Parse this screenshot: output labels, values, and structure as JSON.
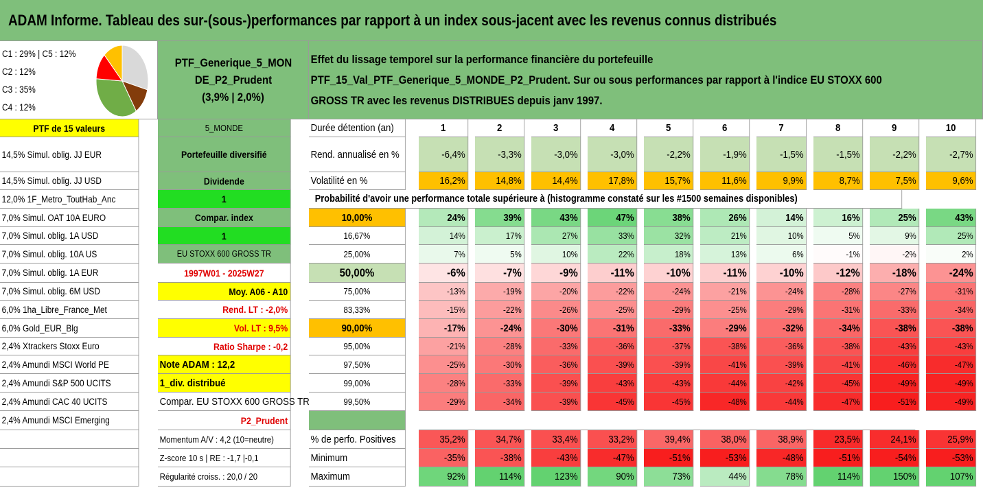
{
  "title": "ADAM Informe. Tableau des sur-(sous-)performances par rapport à un index sous-jacent avec les revenus connus distribués",
  "pie": {
    "lines": [
      "C1 : 29% | C5 : 12%",
      "C2 : 12%",
      "C3 : 35%",
      "C4 : 12%"
    ],
    "slices": [
      {
        "value": 29,
        "color": "#d9d9d9"
      },
      {
        "value": 12,
        "color": "#833c0b"
      },
      {
        "value": 35,
        "color": "#70ad47"
      },
      {
        "value": 12,
        "color": "#ff0000"
      },
      {
        "value": 12,
        "color": "#ffc000"
      }
    ]
  },
  "portfolio_name": "PTF_Generique_5_MONDE_P2_Prudent",
  "portfolio_stats": "(3,9% | 2,0%)",
  "description": "Effet du lissage temporel sur la performance financière du portefeuille PTF_15_Val_PTF_Generique_5_MONDE_P2_Prudent. Sur ou sous performances par rapport à l'indice EU STOXX 600 GROSS TR avec les revenus DISTRIBUES depuis janv 1997.",
  "holdings_header": "PTF de 15 valeurs",
  "holdings": [
    "14,5% Simul. oblig. JJ EUR",
    "14,5% Simul. oblig. JJ USD",
    "12,0% 1F_Metro_ToutHab_Anc",
    "7,0% Simul. OAT 10A EURO",
    "7,0% Simul. oblig. 1A USD",
    "7,0% Simul. oblig. 10A US",
    "7,0% Simul. oblig. 1A EUR",
    "7,0% Simul. oblig. 6M USD",
    "6,0% 1ha_Libre_France_Met",
    "6,0% Gold_EUR_Blg",
    "2,4% Xtrackers Stoxx Euro",
    "2,4% Amundi MSCI World PE",
    "2,4% Amundi S&P 500 UCITS",
    "2,4% Amundi CAC 40 UCITS",
    "2,4% Amundi MSCI Emerging"
  ],
  "params": [
    "5_MONDE",
    "Portefeuille diversifié",
    "Dividende",
    "1",
    "Compar. index",
    "1",
    "EU STOXX 600 GROSS TR",
    "1997W01 - 2025W27",
    "Moy. A06 - A10",
    "Rend. LT : -2,0%",
    "Vol. LT : 9,5%",
    "Ratio Sharpe : -0,2",
    "Note ADAM : 12,2",
    "1_div. distribué",
    "Compar. EU STOXX 600 GROSS TR",
    "P2_Prudent"
  ],
  "bottom_left": [
    "Momentum A/V : 4,2 (10=neutre)",
    "Z-score 10 s | RE : -1,7 |-0,1",
    "Régularité croiss. : 20,0 / 20"
  ],
  "duration_label": "Durée détention (an)",
  "years": [
    "1",
    "2",
    "3",
    "4",
    "5",
    "6",
    "7",
    "8",
    "9",
    "10"
  ],
  "rend_label": "Rend. annualisé en %",
  "rend": [
    "-6,4%",
    "-3,3%",
    "-3,0%",
    "-3,0%",
    "-2,2%",
    "-1,9%",
    "-1,5%",
    "-1,5%",
    "-2,2%",
    "-2,7%"
  ],
  "vol_label": "Volatilité en %",
  "vol": [
    "16,2%",
    "14,8%",
    "14,4%",
    "17,8%",
    "15,7%",
    "11,6%",
    "9,9%",
    "8,7%",
    "7,5%",
    "9,6%"
  ],
  "prob_header": "Probabilité d'avoir une performance totale supérieure à (histogramme constaté sur les #1500 semaines disponibles)",
  "prob_rows": [
    {
      "p": "10,00%",
      "v": [
        "24%",
        "39%",
        "43%",
        "47%",
        "38%",
        "26%",
        "14%",
        "16%",
        "25%",
        "43%"
      ]
    },
    {
      "p": "16,67%",
      "v": [
        "14%",
        "17%",
        "27%",
        "33%",
        "32%",
        "21%",
        "10%",
        "5%",
        "9%",
        "25%"
      ]
    },
    {
      "p": "25,00%",
      "v": [
        "7%",
        "5%",
        "10%",
        "22%",
        "18%",
        "13%",
        "6%",
        "-1%",
        "-2%",
        "2%"
      ]
    },
    {
      "p": "50,00%",
      "v": [
        "-6%",
        "-7%",
        "-9%",
        "-11%",
        "-10%",
        "-11%",
        "-10%",
        "-12%",
        "-18%",
        "-24%"
      ]
    },
    {
      "p": "75,00%",
      "v": [
        "-13%",
        "-19%",
        "-20%",
        "-22%",
        "-24%",
        "-21%",
        "-24%",
        "-28%",
        "-27%",
        "-31%"
      ]
    },
    {
      "p": "83,33%",
      "v": [
        "-15%",
        "-22%",
        "-26%",
        "-25%",
        "-29%",
        "-25%",
        "-29%",
        "-31%",
        "-33%",
        "-34%"
      ]
    },
    {
      "p": "90,00%",
      "v": [
        "-17%",
        "-24%",
        "-30%",
        "-31%",
        "-33%",
        "-29%",
        "-32%",
        "-34%",
        "-38%",
        "-38%"
      ]
    },
    {
      "p": "95,00%",
      "v": [
        "-21%",
        "-28%",
        "-33%",
        "-36%",
        "-37%",
        "-38%",
        "-36%",
        "-38%",
        "-43%",
        "-43%"
      ]
    },
    {
      "p": "97,50%",
      "v": [
        "-25%",
        "-30%",
        "-36%",
        "-39%",
        "-39%",
        "-41%",
        "-39%",
        "-41%",
        "-46%",
        "-47%"
      ]
    },
    {
      "p": "99,00%",
      "v": [
        "-28%",
        "-33%",
        "-39%",
        "-43%",
        "-43%",
        "-44%",
        "-42%",
        "-45%",
        "-49%",
        "-49%"
      ]
    },
    {
      "p": "99,50%",
      "v": [
        "-29%",
        "-34%",
        "-39%",
        "-45%",
        "-45%",
        "-48%",
        "-44%",
        "-47%",
        "-51%",
        "-49%"
      ]
    }
  ],
  "summary": [
    {
      "label": "% de perfo. Positives",
      "v": [
        "35,2%",
        "34,7%",
        "33,4%",
        "33,2%",
        "39,4%",
        "38,0%",
        "38,9%",
        "23,5%",
        "24,1%",
        "25,9%"
      ]
    },
    {
      "label": "Minimum",
      "v": [
        "-35%",
        "-38%",
        "-43%",
        "-47%",
        "-51%",
        "-53%",
        "-48%",
        "-51%",
        "-54%",
        "-53%"
      ]
    },
    {
      "label": "Maximum",
      "v": [
        "92%",
        "114%",
        "123%",
        "90%",
        "73%",
        "44%",
        "78%",
        "114%",
        "150%",
        "107%"
      ]
    }
  ]
}
